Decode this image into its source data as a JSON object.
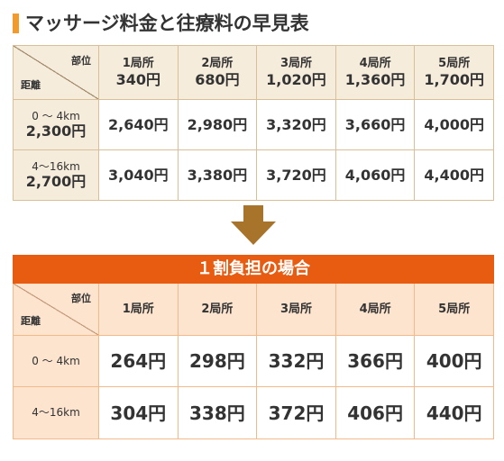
{
  "title": "マッサージ料金と往療料の早見表",
  "table1": {
    "corner_top": "部位",
    "corner_bottom": "距離",
    "columns": [
      {
        "name": "1局所",
        "price": "340円"
      },
      {
        "name": "2局所",
        "price": "680円"
      },
      {
        "name": "3局所",
        "price": "1,020円"
      },
      {
        "name": "4局所",
        "price": "1,360円"
      },
      {
        "name": "5局所",
        "price": "1,700円"
      }
    ],
    "rows": [
      {
        "distance": "0 ～ 4km",
        "price": "2,300円",
        "cells": [
          "2,640円",
          "2,980円",
          "3,320円",
          "3,660円",
          "4,000円"
        ]
      },
      {
        "distance": "4～16km",
        "price": "2,700円",
        "cells": [
          "3,040円",
          "3,380円",
          "3,720円",
          "4,060円",
          "4,400円"
        ]
      }
    ]
  },
  "table2": {
    "title": "１割負担の場合",
    "corner_top": "部位",
    "corner_bottom": "距離",
    "columns": [
      "1局所",
      "2局所",
      "3局所",
      "4局所",
      "5局所"
    ],
    "rows": [
      {
        "distance": "0 ～ 4km",
        "cells": [
          "264円",
          "298円",
          "332円",
          "366円",
          "400円"
        ]
      },
      {
        "distance": "4～16km",
        "cells": [
          "304円",
          "338円",
          "372円",
          "406円",
          "440円"
        ]
      }
    ]
  }
}
